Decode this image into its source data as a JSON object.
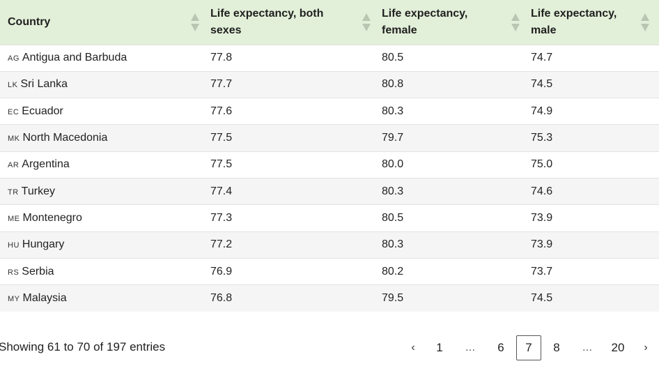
{
  "table": {
    "headers": [
      "Country",
      "Life expectancy, both sexes",
      "Life expectancy, female",
      "Life expectancy, male"
    ],
    "rows": [
      {
        "code": "AG",
        "country": "Antigua and Barbuda",
        "both": "77.8",
        "female": "80.5",
        "male": "74.7"
      },
      {
        "code": "LK",
        "country": "Sri Lanka",
        "both": "77.7",
        "female": "80.8",
        "male": "74.5"
      },
      {
        "code": "EC",
        "country": "Ecuador",
        "both": "77.6",
        "female": "80.3",
        "male": "74.9"
      },
      {
        "code": "MK",
        "country": "North Macedonia",
        "both": "77.5",
        "female": "79.7",
        "male": "75.3"
      },
      {
        "code": "AR",
        "country": "Argentina",
        "both": "77.5",
        "female": "80.0",
        "male": "75.0"
      },
      {
        "code": "TR",
        "country": "Turkey",
        "both": "77.4",
        "female": "80.3",
        "male": "74.6"
      },
      {
        "code": "ME",
        "country": "Montenegro",
        "both": "77.3",
        "female": "80.5",
        "male": "73.9"
      },
      {
        "code": "HU",
        "country": "Hungary",
        "both": "77.2",
        "female": "80.3",
        "male": "73.9"
      },
      {
        "code": "RS",
        "country": "Serbia",
        "both": "76.9",
        "female": "80.2",
        "male": "73.7"
      },
      {
        "code": "MY",
        "country": "Malaysia",
        "both": "76.8",
        "female": "79.5",
        "male": "74.5"
      }
    ]
  },
  "footer": {
    "info": "Showing 61 to 70 of 197 entries"
  },
  "pagination": {
    "prev": "‹",
    "next": "›",
    "items": [
      "1",
      "…",
      "6",
      "7",
      "8",
      "…",
      "20"
    ],
    "current": "7"
  },
  "colors": {
    "header_bg": "#e3f0d9",
    "row_alt_bg": "#f5f5f5",
    "sort_icon": "#b9c6b2"
  }
}
